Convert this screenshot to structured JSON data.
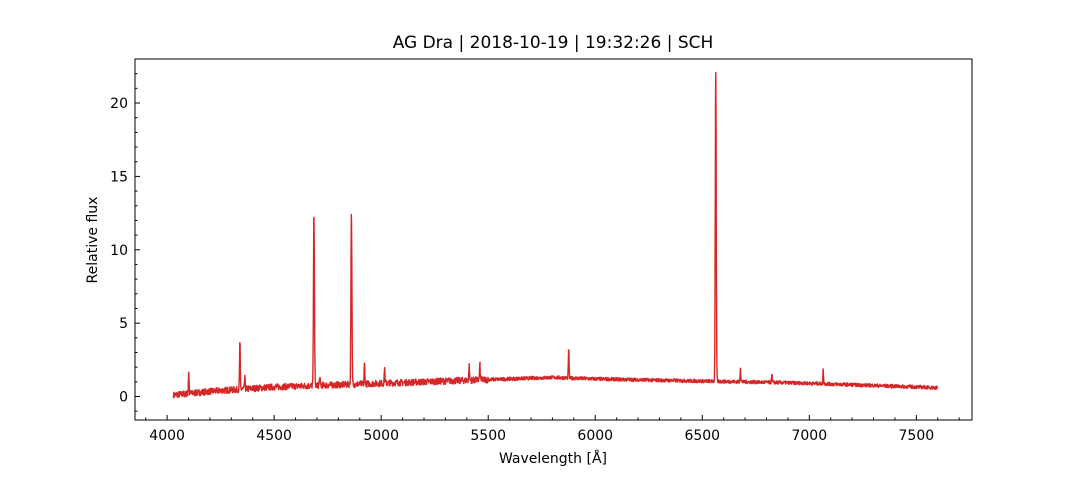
{
  "chart_data": {
    "type": "line",
    "title": "AG Dra | 2018-10-19 | 19:32:26 | SCH",
    "xlabel": "Wavelength [Å]",
    "ylabel": "Relative flux",
    "xlim": [
      3850,
      7760
    ],
    "ylim": [
      -1.6,
      23.0
    ],
    "x_ticks": [
      4000,
      4500,
      5000,
      5500,
      6000,
      6500,
      7000,
      7500
    ],
    "y_ticks": [
      0,
      5,
      10,
      15,
      20
    ],
    "grid": false,
    "line_color": "#d62728",
    "series": [
      {
        "x_range": [
          4030,
          7600
        ],
        "continuum": [
          [
            4030,
            0.1
          ],
          [
            4200,
            0.35
          ],
          [
            4500,
            0.65
          ],
          [
            5000,
            0.9
          ],
          [
            5500,
            1.15
          ],
          [
            5800,
            1.3
          ],
          [
            6000,
            1.2
          ],
          [
            6500,
            1.05
          ],
          [
            6700,
            1.0
          ],
          [
            7000,
            0.9
          ],
          [
            7300,
            0.75
          ],
          [
            7600,
            0.6
          ]
        ],
        "emission_lines": [
          {
            "x": 4101,
            "peak": 1.7
          },
          {
            "x": 4340,
            "peak": 3.8
          },
          {
            "x": 4363,
            "peak": 1.3
          },
          {
            "x": 4686,
            "peak": 12.6
          },
          {
            "x": 4713,
            "peak": 1.3
          },
          {
            "x": 4861,
            "peak": 12.7
          },
          {
            "x": 4922,
            "peak": 2.2
          },
          {
            "x": 5016,
            "peak": 2.0
          },
          {
            "x": 5411,
            "peak": 2.1
          },
          {
            "x": 5461,
            "peak": 2.2
          },
          {
            "x": 5876,
            "peak": 3.3
          },
          {
            "x": 6563,
            "peak": 22.1
          },
          {
            "x": 6678,
            "peak": 2.0
          },
          {
            "x": 6825,
            "peak": 1.5
          },
          {
            "x": 7065,
            "peak": 1.8
          }
        ]
      }
    ]
  }
}
